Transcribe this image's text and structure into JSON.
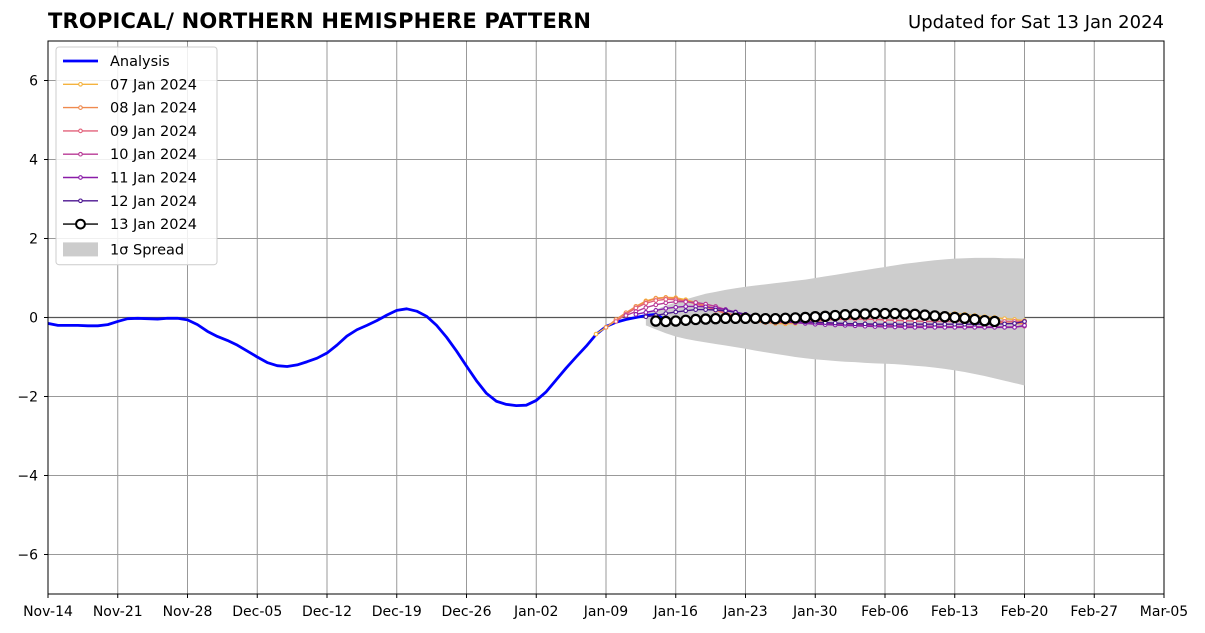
{
  "title": "TROPICAL/ NORTHERN HEMISPHERE PATTERN",
  "subtitle": "Updated for Sat 13 Jan 2024",
  "chart_data": {
    "type": "line",
    "title": "TROPICAL/ NORTHERN HEMISPHERE PATTERN",
    "xlabel": "",
    "ylabel": "",
    "x_start": "2023-11-14",
    "x_end": "2024-03-05",
    "ylim": [
      -7,
      7
    ],
    "yticks": [
      -6,
      -4,
      -2,
      0,
      2,
      4,
      6
    ],
    "xticks": [
      "Nov-14",
      "Nov-21",
      "Nov-28",
      "Dec-05",
      "Dec-12",
      "Dec-19",
      "Dec-26",
      "Jan-02",
      "Jan-09",
      "Jan-16",
      "Jan-23",
      "Jan-30",
      "Feb-06",
      "Feb-13",
      "Feb-20",
      "Feb-27",
      "Mar-05"
    ],
    "grid": true,
    "legend_position": "top-left",
    "analysis": {
      "name": "Analysis",
      "color": "#0000ff",
      "start": "2023-11-14",
      "values": [
        -0.15,
        -0.2,
        -0.2,
        -0.2,
        -0.21,
        -0.21,
        -0.18,
        -0.1,
        -0.03,
        -0.02,
        -0.03,
        -0.04,
        -0.02,
        -0.02,
        -0.06,
        -0.18,
        -0.35,
        -0.48,
        -0.58,
        -0.7,
        -0.85,
        -1.0,
        -1.14,
        -1.22,
        -1.24,
        -1.2,
        -1.12,
        -1.03,
        -0.9,
        -0.7,
        -0.47,
        -0.31,
        -0.2,
        -0.08,
        0.06,
        0.18,
        0.22,
        0.16,
        0.03,
        -0.2,
        -0.5,
        -0.85,
        -1.23,
        -1.6,
        -1.92,
        -2.12,
        -2.2,
        -2.23,
        -2.22,
        -2.1,
        -1.88,
        -1.58,
        -1.28,
        -1.0,
        -0.73,
        -0.43,
        -0.23,
        -0.12,
        -0.05,
        0.0,
        0.05,
        0.08,
        -0.06
      ]
    },
    "forecasts": [
      {
        "name": "07 Jan 2024",
        "color": "#f5b33e",
        "start": "2024-01-08",
        "values": [
          -0.42,
          -0.25,
          -0.08,
          0.1,
          0.28,
          0.42,
          0.49,
          0.51,
          0.5,
          0.45,
          0.38,
          0.3,
          0.22,
          0.13,
          0.05,
          -0.02,
          -0.08,
          -0.12,
          -0.15,
          -0.16,
          -0.15,
          -0.12,
          -0.1,
          -0.07,
          -0.04,
          -0.02,
          0.0,
          0.02,
          0.03,
          0.05,
          0.07,
          0.08,
          0.1,
          0.1,
          0.1,
          0.1,
          0.1,
          0.08,
          0.05,
          0.02,
          0.0,
          -0.03,
          -0.05,
          -0.08
        ]
      },
      {
        "name": "08 Jan 2024",
        "color": "#ef8a4f",
        "start": "2024-01-09",
        "values": [
          -0.25,
          -0.05,
          0.12,
          0.28,
          0.4,
          0.48,
          0.5,
          0.48,
          0.42,
          0.35,
          0.27,
          0.18,
          0.1,
          0.02,
          -0.05,
          -0.1,
          -0.13,
          -0.14,
          -0.13,
          -0.11,
          -0.08,
          -0.05,
          -0.02,
          0.0,
          0.02,
          0.04,
          0.05,
          0.06,
          0.07,
          0.07,
          0.07,
          0.06,
          0.05,
          0.03,
          0.0,
          -0.02,
          -0.05,
          -0.08,
          -0.1,
          -0.12,
          -0.14,
          -0.15,
          -0.16
        ]
      },
      {
        "name": "09 Jan 2024",
        "color": "#e2607a",
        "start": "2024-01-10",
        "values": [
          -0.1,
          0.08,
          0.24,
          0.36,
          0.43,
          0.46,
          0.45,
          0.41,
          0.35,
          0.28,
          0.2,
          0.12,
          0.05,
          -0.02,
          -0.07,
          -0.1,
          -0.12,
          -0.12,
          -0.11,
          -0.1,
          -0.08,
          -0.06,
          -0.05,
          -0.04,
          -0.04,
          -0.04,
          -0.05,
          -0.06,
          -0.07,
          -0.08,
          -0.09,
          -0.1,
          -0.1,
          -0.1,
          -0.1,
          -0.1,
          -0.1,
          -0.1,
          -0.1,
          -0.1,
          -0.1,
          -0.1
        ]
      },
      {
        "name": "10 Jan 2024",
        "color": "#b83a96",
        "start": "2024-01-11",
        "values": [
          0.05,
          0.15,
          0.25,
          0.32,
          0.37,
          0.4,
          0.4,
          0.38,
          0.34,
          0.28,
          0.2,
          0.12,
          0.04,
          -0.02,
          -0.07,
          -0.1,
          -0.12,
          -0.13,
          -0.14,
          -0.15,
          -0.16,
          -0.17,
          -0.18,
          -0.18,
          -0.19,
          -0.2,
          -0.2,
          -0.21,
          -0.21,
          -0.22,
          -0.22,
          -0.22,
          -0.23,
          -0.23,
          -0.23,
          -0.23,
          -0.24,
          -0.24,
          -0.24,
          -0.24,
          -0.22
        ]
      },
      {
        "name": "11 Jan 2024",
        "color": "#8a1ca8",
        "start": "2024-01-12",
        "values": [
          0.08,
          0.13,
          0.18,
          0.23,
          0.26,
          0.28,
          0.28,
          0.27,
          0.24,
          0.2,
          0.14,
          0.08,
          0.02,
          -0.04,
          -0.08,
          -0.11,
          -0.13,
          -0.15,
          -0.17,
          -0.18,
          -0.19,
          -0.2,
          -0.21,
          -0.22,
          -0.23,
          -0.24,
          -0.24,
          -0.25,
          -0.25,
          -0.25,
          -0.25,
          -0.25,
          -0.25,
          -0.25,
          -0.25,
          -0.25,
          -0.25,
          -0.25,
          -0.25,
          -0.2
        ]
      },
      {
        "name": "12 Jan 2024",
        "color": "#4b1590",
        "start": "2024-01-13",
        "values": [
          0.02,
          0.05,
          0.1,
          0.14,
          0.17,
          0.2,
          0.2,
          0.19,
          0.17,
          0.13,
          0.08,
          0.03,
          -0.02,
          -0.05,
          -0.08,
          -0.1,
          -0.11,
          -0.12,
          -0.13,
          -0.14,
          -0.15,
          -0.16,
          -0.16,
          -0.17,
          -0.17,
          -0.17,
          -0.17,
          -0.17,
          -0.17,
          -0.17,
          -0.17,
          -0.17,
          -0.17,
          -0.17,
          -0.17,
          -0.17,
          -0.16,
          -0.15,
          -0.1
        ]
      },
      {
        "name": "13 Jan 2024",
        "color": "#000000",
        "start": "2024-01-14",
        "values": [
          -0.09,
          -0.1,
          -0.09,
          -0.07,
          -0.05,
          -0.04,
          -0.03,
          -0.02,
          -0.02,
          -0.02,
          -0.02,
          -0.03,
          -0.03,
          -0.02,
          -0.01,
          0.0,
          0.02,
          0.03,
          0.05,
          0.07,
          0.08,
          0.09,
          0.1,
          0.1,
          0.1,
          0.09,
          0.08,
          0.06,
          0.04,
          0.02,
          0.0,
          -0.02,
          -0.05,
          -0.08,
          -0.1
        ]
      }
    ],
    "spread": {
      "name": "1σ Spread",
      "color": "#cccccc",
      "start": "2024-01-13",
      "upper": [
        0.1,
        0.2,
        0.3,
        0.38,
        0.46,
        0.53,
        0.6,
        0.65,
        0.7,
        0.74,
        0.78,
        0.81,
        0.84,
        0.87,
        0.9,
        0.93,
        0.96,
        1.0,
        1.04,
        1.08,
        1.12,
        1.16,
        1.2,
        1.24,
        1.28,
        1.32,
        1.36,
        1.39,
        1.42,
        1.45,
        1.47,
        1.49,
        1.5,
        1.51,
        1.51,
        1.51,
        1.5,
        1.5,
        1.49
      ],
      "lower": [
        -0.2,
        -0.3,
        -0.4,
        -0.48,
        -0.54,
        -0.59,
        -0.63,
        -0.67,
        -0.71,
        -0.75,
        -0.79,
        -0.84,
        -0.88,
        -0.92,
        -0.96,
        -1.0,
        -1.03,
        -1.06,
        -1.08,
        -1.1,
        -1.12,
        -1.13,
        -1.15,
        -1.16,
        -1.17,
        -1.18,
        -1.2,
        -1.22,
        -1.24,
        -1.27,
        -1.3,
        -1.34,
        -1.38,
        -1.43,
        -1.48,
        -1.54,
        -1.6,
        -1.66,
        -1.72
      ]
    }
  }
}
